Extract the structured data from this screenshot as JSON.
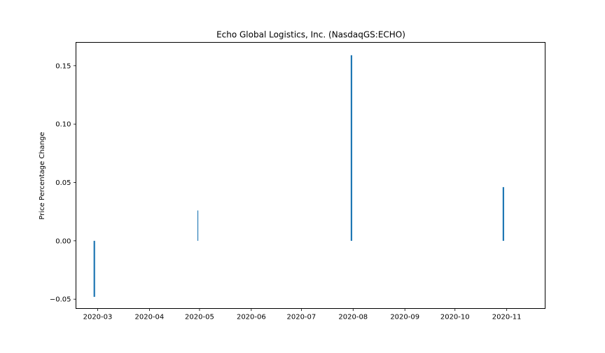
{
  "chart_data": {
    "type": "bar",
    "title": "Echo Global Logistics, Inc. (NasdaqGS:ECHO)",
    "xlabel": "",
    "ylabel": "Price Percentage Change",
    "x_ticks": [
      "2020-03",
      "2020-04",
      "2020-05",
      "2020-06",
      "2020-07",
      "2020-08",
      "2020-09",
      "2020-10",
      "2020-11"
    ],
    "y_ticks": [
      "−0.05",
      "0.00",
      "0.05",
      "0.10",
      "0.15"
    ],
    "y_tick_values": [
      -0.05,
      0.0,
      0.05,
      0.1,
      0.15
    ],
    "xlim": [
      "2020-02-17",
      "2020-11-24"
    ],
    "ylim": [
      -0.058,
      0.17
    ],
    "grid": false,
    "bar_color": "#1f77b4",
    "points": [
      {
        "date": "2020-02-28",
        "value": -0.048,
        "weight": "thick"
      },
      {
        "date": "2020-04-30",
        "value": 0.026,
        "weight": "thin"
      },
      {
        "date": "2020-07-31",
        "value": 0.159,
        "weight": "thick"
      },
      {
        "date": "2020-10-30",
        "value": 0.046,
        "weight": "thick"
      }
    ]
  }
}
